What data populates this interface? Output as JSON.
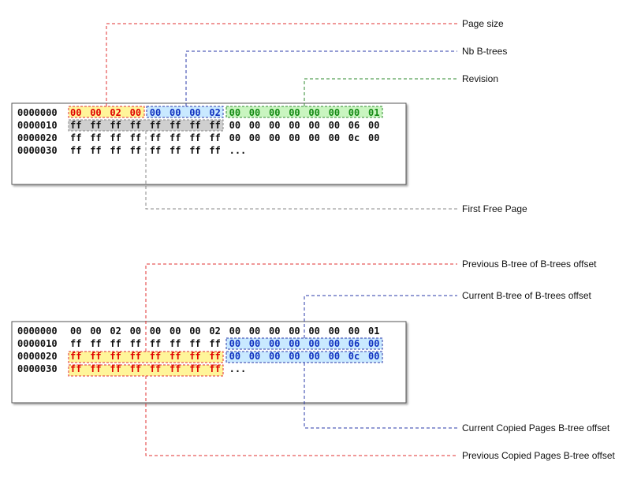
{
  "colors": {
    "red": "#e00000",
    "red_line": "#e03030",
    "blue": "#1030c0",
    "blue_line": "#2a3aa8",
    "green": "#138a13",
    "green_line": "#2e8a2e",
    "gray_line": "#888888",
    "yellow_fill": "#fff59a",
    "blue_fill": "#c9e9ff",
    "green_fill": "#c9f5c0",
    "gray_fill": "#cfcfcf"
  },
  "diagram1": {
    "labels": {
      "page_size": "Page size",
      "nb_btrees": "Nb B-trees",
      "revision": "Revision",
      "first_free_page": "First Free Page"
    },
    "rows": [
      {
        "offset": "0000000",
        "bytes": [
          "00",
          "00",
          "02",
          "00",
          "00",
          "00",
          "00",
          "02",
          "00",
          "00",
          "00",
          "00",
          "00",
          "00",
          "00",
          "01"
        ]
      },
      {
        "offset": "0000010",
        "bytes": [
          "ff",
          "ff",
          "ff",
          "ff",
          "ff",
          "ff",
          "ff",
          "ff",
          "00",
          "00",
          "00",
          "00",
          "00",
          "00",
          "06",
          "00"
        ]
      },
      {
        "offset": "0000020",
        "bytes": [
          "ff",
          "ff",
          "ff",
          "ff",
          "ff",
          "ff",
          "ff",
          "ff",
          "00",
          "00",
          "00",
          "00",
          "00",
          "00",
          "0c",
          "00"
        ]
      },
      {
        "offset": "0000030",
        "bytes": [
          "ff",
          "ff",
          "ff",
          "ff",
          "ff",
          "ff",
          "ff",
          "ff",
          "..."
        ]
      }
    ]
  },
  "diagram2": {
    "labels": {
      "prev_btree_of_btrees": "Previous B-tree of B-trees offset",
      "cur_btree_of_btrees": "Current B-tree of B-trees offset",
      "cur_copied_pages": "Current Copied Pages B-tree offset",
      "prev_copied_pages": "Previous Copied Pages B-tree offset"
    },
    "rows": [
      {
        "offset": "0000000",
        "bytes": [
          "00",
          "00",
          "02",
          "00",
          "00",
          "00",
          "00",
          "02",
          "00",
          "00",
          "00",
          "00",
          "00",
          "00",
          "00",
          "01"
        ]
      },
      {
        "offset": "0000010",
        "bytes": [
          "ff",
          "ff",
          "ff",
          "ff",
          "ff",
          "ff",
          "ff",
          "ff",
          "00",
          "00",
          "00",
          "00",
          "00",
          "00",
          "06",
          "00"
        ]
      },
      {
        "offset": "0000020",
        "bytes": [
          "ff",
          "ff",
          "ff",
          "ff",
          "ff",
          "ff",
          "ff",
          "ff",
          "00",
          "00",
          "00",
          "00",
          "00",
          "00",
          "0c",
          "00"
        ]
      },
      {
        "offset": "0000030",
        "bytes": [
          "ff",
          "ff",
          "ff",
          "ff",
          "ff",
          "ff",
          "ff",
          "ff",
          "..."
        ]
      }
    ]
  }
}
